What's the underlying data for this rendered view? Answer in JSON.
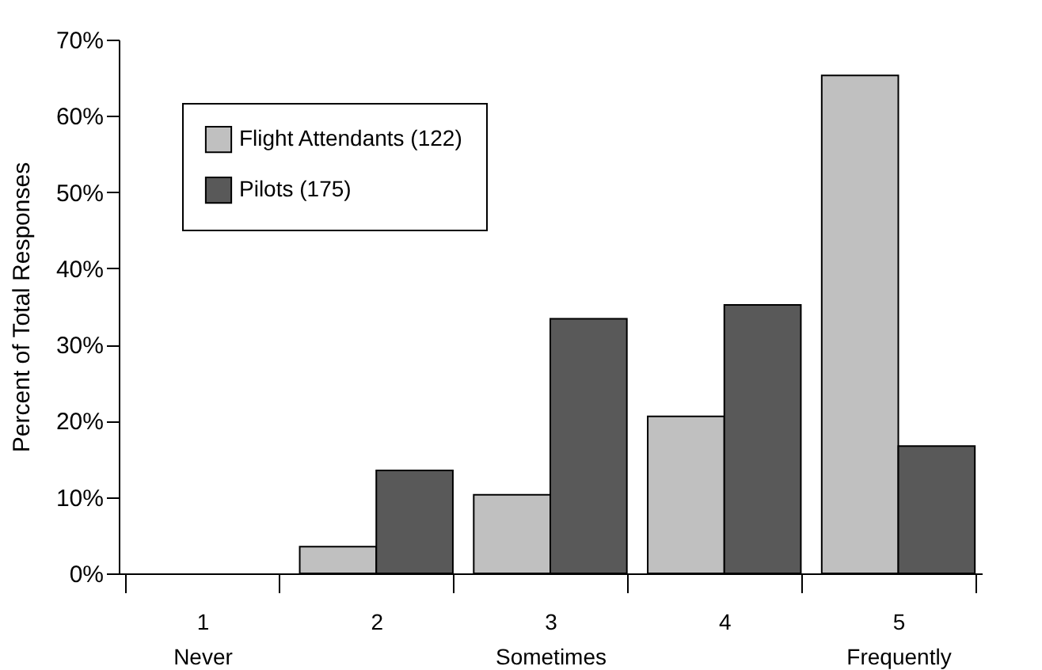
{
  "chart_data": {
    "type": "bar",
    "ylabel": "Percent of Total Responses",
    "categories": [
      "1\nNever",
      "2",
      "3\nSometimes",
      "4",
      "5\nFrequently"
    ],
    "series": [
      {
        "name": "Flight Attendants (122)",
        "color": "#c0c0c0",
        "values": [
          0,
          3.5,
          10.3,
          20.6,
          65.3
        ]
      },
      {
        "name": "Pilots (175)",
        "color": "#595959",
        "values": [
          0,
          13.5,
          33.4,
          35.2,
          16.7
        ]
      }
    ],
    "ylim": [
      0,
      70
    ],
    "yticks": [
      {
        "value": 0,
        "label": "0%"
      },
      {
        "value": 10,
        "label": "10%"
      },
      {
        "value": 20,
        "label": "20%"
      },
      {
        "value": 30,
        "label": "30%"
      },
      {
        "value": 40,
        "label": "40%"
      },
      {
        "value": 50,
        "label": "50%"
      },
      {
        "value": 60,
        "label": "60%"
      },
      {
        "value": 70,
        "label": "70%"
      }
    ],
    "grid": false,
    "legend": "top left"
  }
}
